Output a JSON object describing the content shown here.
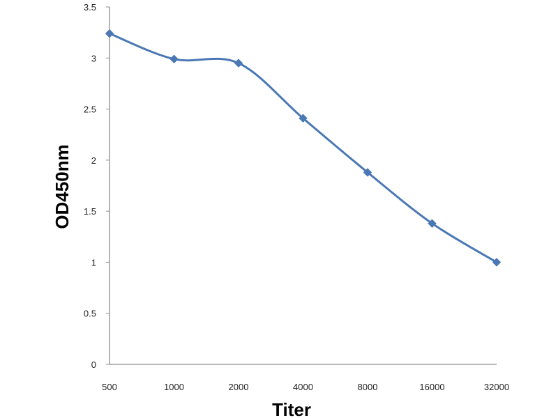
{
  "chart_data": {
    "type": "line",
    "title": "",
    "xlabel": "Titer",
    "ylabel": "OD450nm",
    "categories": [
      "500",
      "1000",
      "2000",
      "4000",
      "8000",
      "16000",
      "32000"
    ],
    "series": [
      {
        "values": [
          3.24,
          2.99,
          2.95,
          2.41,
          1.88,
          1.38,
          1.0
        ],
        "color": "#4a78b4",
        "marker": "diamond"
      }
    ],
    "ylim": [
      0,
      3.5
    ],
    "yticks": [
      "0",
      "0.5",
      "1",
      "1.5",
      "2",
      "2.5",
      "3",
      "3.5"
    ],
    "smooth": true,
    "grid": false,
    "legend": "none"
  }
}
